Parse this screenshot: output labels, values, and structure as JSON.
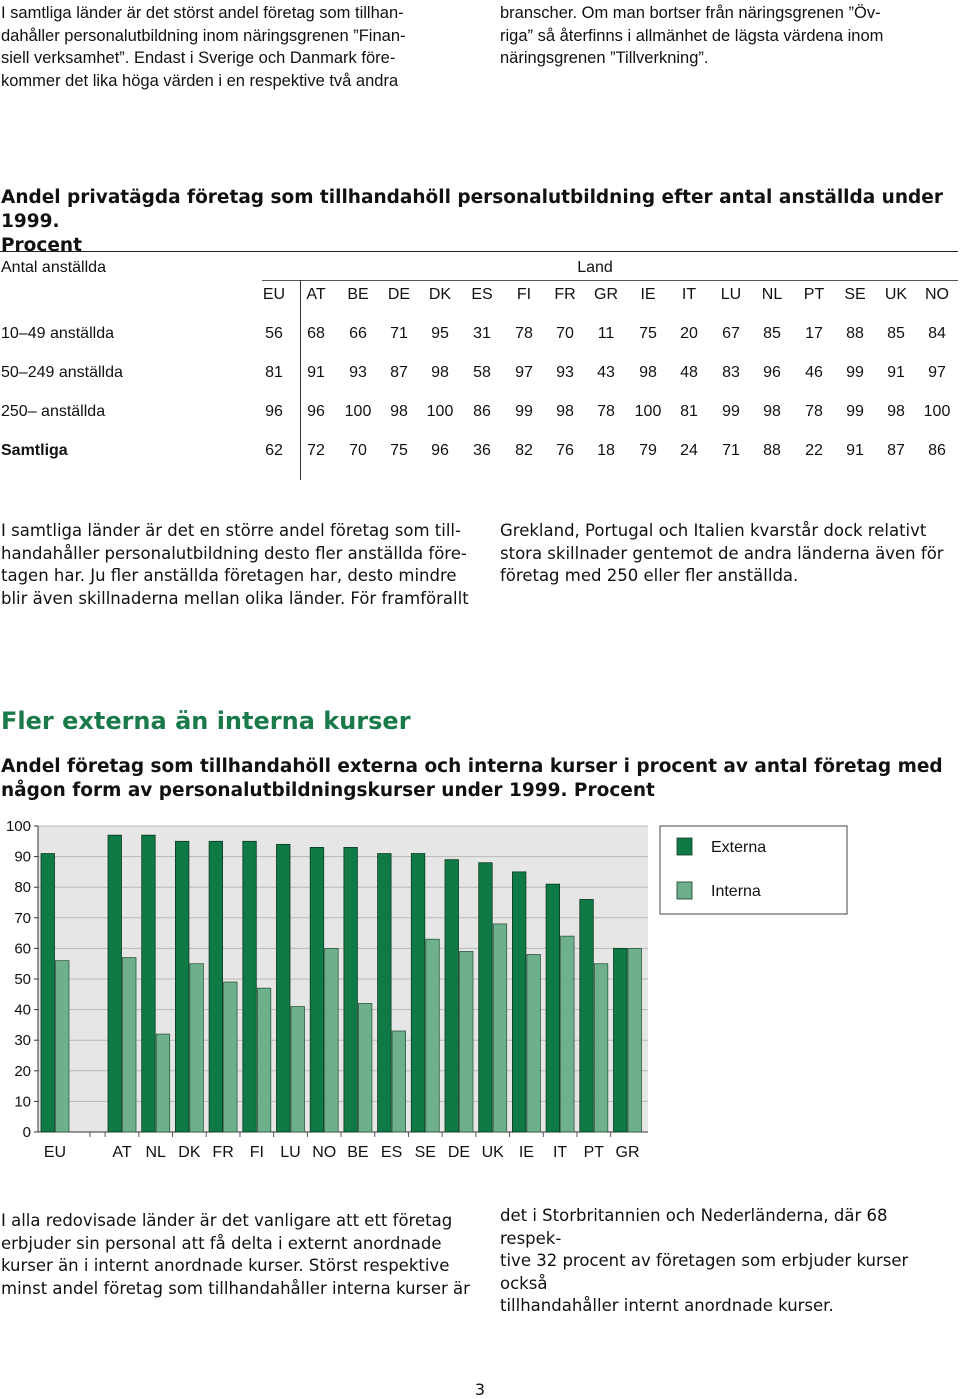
{
  "top_text": {
    "left": [
      "I samtliga länder är det störst andel företag som tillhan-",
      "dahåller personalutbildning inom näringsgrenen ”Finan-",
      "siell verksamhet”. Endast i Sverige och Danmark före-",
      "kommer det lika höga värden i en respektive två andra"
    ],
    "right": [
      "branscher. Om man bortser från näringsgrenen ”Öv-",
      "riga” så återfinns i allmänhet de lägsta värdena inom",
      "näringsgrenen ”Tillverkning”."
    ]
  },
  "table": {
    "title_line1": "Andel privatägda företag som tillhandahöll personalutbildning efter antal anställda under 1999.",
    "title_line2": "Procent",
    "row_header": "Antal anställda",
    "group_header": "Land",
    "columns": [
      "EU",
      "AT",
      "BE",
      "DE",
      "DK",
      "ES",
      "FI",
      "FR",
      "GR",
      "IE",
      "IT",
      "LU",
      "NL",
      "PT",
      "SE",
      "UK",
      "NO"
    ],
    "rows": [
      {
        "label": "10–49 anställda",
        "bold": false,
        "values": [
          "56",
          "68",
          "66",
          "71",
          "95",
          "31",
          "78",
          "70",
          "11",
          "75",
          "20",
          "67",
          "85",
          "17",
          "88",
          "85",
          "84"
        ]
      },
      {
        "label": "50–249 anställda",
        "bold": false,
        "values": [
          "81",
          "91",
          "93",
          "87",
          "98",
          "58",
          "97",
          "93",
          "43",
          "98",
          "48",
          "83",
          "96",
          "46",
          "99",
          "91",
          "97"
        ]
      },
      {
        "label": "250– anställda",
        "bold": false,
        "values": [
          "96",
          "96",
          "100",
          "98",
          "100",
          "86",
          "99",
          "98",
          "78",
          "100",
          "81",
          "99",
          "98",
          "78",
          "99",
          "98",
          "100"
        ]
      },
      {
        "label": "Samtliga",
        "bold": true,
        "values": [
          "62",
          "72",
          "70",
          "75",
          "96",
          "36",
          "82",
          "76",
          "18",
          "79",
          "24",
          "71",
          "88",
          "22",
          "91",
          "87",
          "86"
        ]
      }
    ]
  },
  "mid_text": {
    "left": [
      "I samtliga länder är det en större andel företag som till-",
      "handahåller personalutbildning desto fler anställda före-",
      "tagen har. Ju fler anställda företagen har, desto mindre",
      "blir även skillnaderna mellan olika länder. För framförallt"
    ],
    "right": [
      "Grekland, Portugal och Italien kvarstår dock relativt",
      "stora skillnader gentemot de andra länderna även för",
      "företag med 250 eller fler anställda."
    ]
  },
  "section_heading": "Fler externa än interna kurser",
  "chart_title_line1": "Andel företag som tillhandahöll externa och interna kurser i procent av antal företag med",
  "chart_title_line2": "någon form av personalutbildningskurser under 1999. Procent",
  "chart_data": {
    "type": "bar",
    "categories": [
      "EU",
      "AT",
      "NL",
      "DK",
      "FR",
      "FI",
      "LU",
      "NO",
      "BE",
      "ES",
      "SE",
      "DE",
      "UK",
      "IE",
      "IT",
      "PT",
      "GR"
    ],
    "series": [
      {
        "name": "Externa",
        "color": "#0f7a45",
        "values": [
          91,
          97,
          97,
          95,
          95,
          95,
          94,
          93,
          93,
          91,
          91,
          89,
          88,
          85,
          81,
          76,
          60
        ]
      },
      {
        "name": "Interna",
        "color": "#6fb08c",
        "values": [
          56,
          57,
          32,
          55,
          49,
          47,
          41,
          60,
          42,
          33,
          63,
          59,
          68,
          58,
          64,
          55,
          60
        ]
      }
    ],
    "y_ticks": [
      "0",
      "10",
      "20",
      "30",
      "40",
      "50",
      "60",
      "70",
      "80",
      "90",
      "100"
    ],
    "ylim": [
      0,
      100
    ],
    "legend_position": "top-right",
    "grid": true
  },
  "bottom_text": {
    "left": [
      "I alla redovisade länder är det vanligare att ett företag",
      "erbjuder sin personal att få delta i externt anordnade",
      "kurser än i internt anordnade kurser. Störst respektive",
      "minst andel företag som tillhandahåller interna kurser är"
    ],
    "right": [
      "det i Storbritannien och Nederländerna, där 68 respek-",
      "tive 32 procent av företagen som erbjuder kurser också",
      "tillhandahåller internt anordnade kurser."
    ]
  },
  "page_number": "3"
}
